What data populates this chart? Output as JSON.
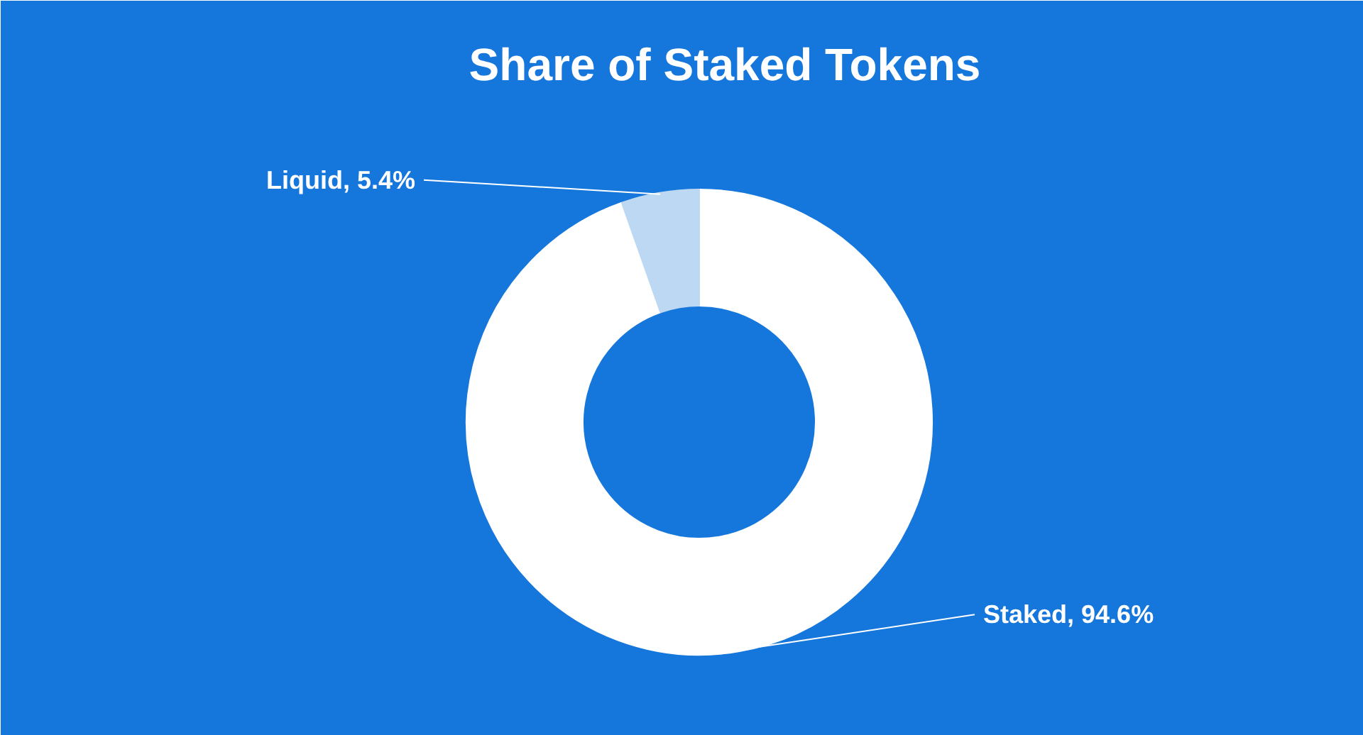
{
  "chart_data": {
    "type": "donut",
    "title": "Share of Staked Tokens",
    "categories": [
      "Staked",
      "Liquid"
    ],
    "values": [
      94.6,
      5.4
    ],
    "colors": [
      "#ffffff",
      "#bcd8f2"
    ],
    "value_labels": [
      "94.6%",
      "5.4%"
    ]
  }
}
